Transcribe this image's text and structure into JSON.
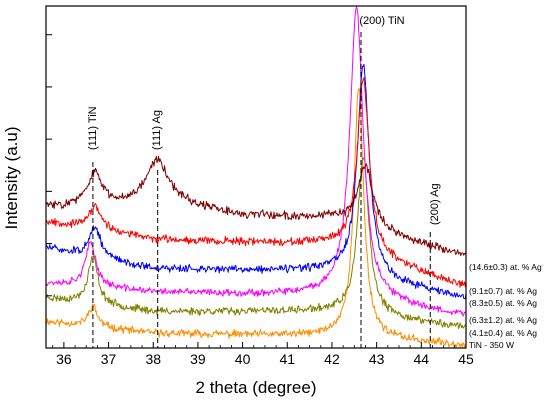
{
  "chart_data": {
    "type": "line",
    "title": "",
    "xlabel": "2 theta (degree)",
    "ylabel": "Intensity (a.u)",
    "xlim": [
      35.6,
      45
    ],
    "x_ticks": [
      36,
      37,
      38,
      39,
      40,
      41,
      42,
      43,
      44,
      45
    ],
    "y_ticks_shown": false,
    "grid": false,
    "peaks": [
      {
        "label": "(111) TiN",
        "x": 36.65
      },
      {
        "label": "(111) Ag",
        "x": 38.1
      },
      {
        "label": "(200) TiN",
        "x": 42.65
      },
      {
        "label": "(200) Ag",
        "x": 44.2
      }
    ],
    "series": [
      {
        "name": "TiN - 350 W",
        "color": "#ff8c00",
        "baseline": [
          [
            35.6,
            0.45
          ],
          [
            38,
            0.25
          ],
          [
            42,
            0.2
          ],
          [
            45,
            0.05
          ]
        ],
        "peaks": [
          [
            36.65,
            0.35,
            0.12
          ],
          [
            42.6,
            4.25,
            0.13
          ]
        ],
        "noise": 0.1,
        "seed": 11
      },
      {
        "name": "(4.1±0.4) at. % Ag",
        "color": "#808000",
        "baseline": [
          [
            35.6,
            0.85
          ],
          [
            38,
            0.62
          ],
          [
            42,
            0.62
          ],
          [
            45,
            0.35
          ]
        ],
        "peaks": [
          [
            36.65,
            0.8,
            0.13
          ],
          [
            42.7,
            2.7,
            0.15
          ]
        ],
        "noise": 0.1,
        "seed": 23
      },
      {
        "name": "(6.3±1.2) at. % Ag",
        "color": "#ff00ff",
        "baseline": [
          [
            35.6,
            1.1
          ],
          [
            38,
            0.95
          ],
          [
            42,
            0.88
          ],
          [
            45,
            0.55
          ]
        ],
        "peaks": [
          [
            36.6,
            0.75,
            0.14
          ],
          [
            42.55,
            4.95,
            0.18
          ]
        ],
        "noise": 0.09,
        "seed": 37
      },
      {
        "name": "(8.3±0.5) at. % Ag",
        "color": "#0000ff",
        "baseline": [
          [
            35.6,
            1.7
          ],
          [
            38,
            1.35
          ],
          [
            42,
            1.3
          ],
          [
            45,
            0.85
          ]
        ],
        "peaks": [
          [
            36.7,
            0.5,
            0.15
          ],
          [
            42.7,
            3.6,
            0.16
          ]
        ],
        "noise": 0.1,
        "seed": 51
      },
      {
        "name": "(9.1±0.7) at. % Ag",
        "color": "#ff0000",
        "baseline": [
          [
            35.6,
            2.15
          ],
          [
            38,
            1.85
          ],
          [
            42,
            1.75
          ],
          [
            45,
            1.05
          ]
        ],
        "peaks": [
          [
            36.7,
            0.4,
            0.16
          ],
          [
            42.7,
            3.0,
            0.16
          ]
        ],
        "noise": 0.1,
        "seed": 67
      },
      {
        "name": "(14.6±0.3) at. % Ag",
        "color": "#800000",
        "baseline": [
          [
            35.6,
            2.4
          ],
          [
            37,
            2.4
          ],
          [
            38,
            2.5
          ],
          [
            39,
            2.38
          ],
          [
            40,
            2.25
          ],
          [
            42,
            2.2
          ],
          [
            45,
            1.55
          ]
        ],
        "peaks": [
          [
            36.7,
            0.55,
            0.2
          ],
          [
            38.1,
            0.7,
            0.3
          ],
          [
            42.75,
            1.05,
            0.2
          ]
        ],
        "noise": 0.11,
        "seed": 83
      }
    ]
  },
  "legend": {
    "labels": [
      "(14.6±0.3) at. % Ag",
      "(9.1±0.7) at. % Ag",
      "(8.3±0.5) at. % Ag",
      "(6.3±1.2) at. % Ag",
      "(4.1±0.4) at. % Ag",
      "TiN - 350 W"
    ]
  }
}
